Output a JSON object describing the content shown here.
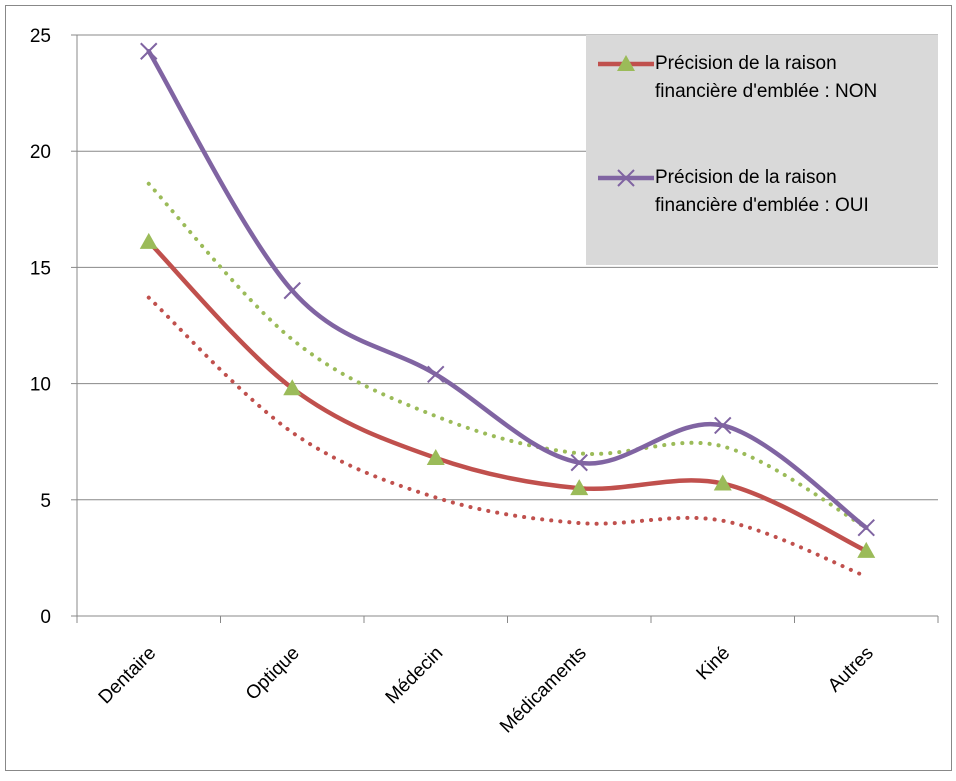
{
  "chart_data": {
    "type": "line",
    "smooth": true,
    "categories": [
      "Dentaire",
      "Optique",
      "Médecin",
      "Médicaments",
      "Kiné",
      "Autres"
    ],
    "series": [
      {
        "name": "Précision de la raison financière d'emblée : NON",
        "color": "#c0504d",
        "marker": "triangle",
        "marker_color": "#9bbb59",
        "style": "solid",
        "values": [
          16.1,
          9.8,
          6.8,
          5.5,
          5.7,
          2.8
        ]
      },
      {
        "name": "Précision de la raison financière d'emblée : OUI",
        "color": "#8064a2",
        "marker": "x",
        "marker_color": "#8064a2",
        "style": "solid",
        "values": [
          24.3,
          14.0,
          10.4,
          6.6,
          8.2,
          3.8
        ]
      },
      {
        "color": "#9bbb59",
        "style": "dotted",
        "values": [
          18.6,
          11.9,
          8.6,
          7.0,
          7.3,
          3.8
        ]
      },
      {
        "color": "#c0504d",
        "style": "dotted",
        "values": [
          13.7,
          7.9,
          5.1,
          4.0,
          4.1,
          1.7
        ]
      }
    ],
    "ylim": [
      0,
      25
    ],
    "yticks": [
      0,
      5,
      10,
      15,
      20,
      25
    ],
    "grid": true,
    "legend": "top-right"
  }
}
